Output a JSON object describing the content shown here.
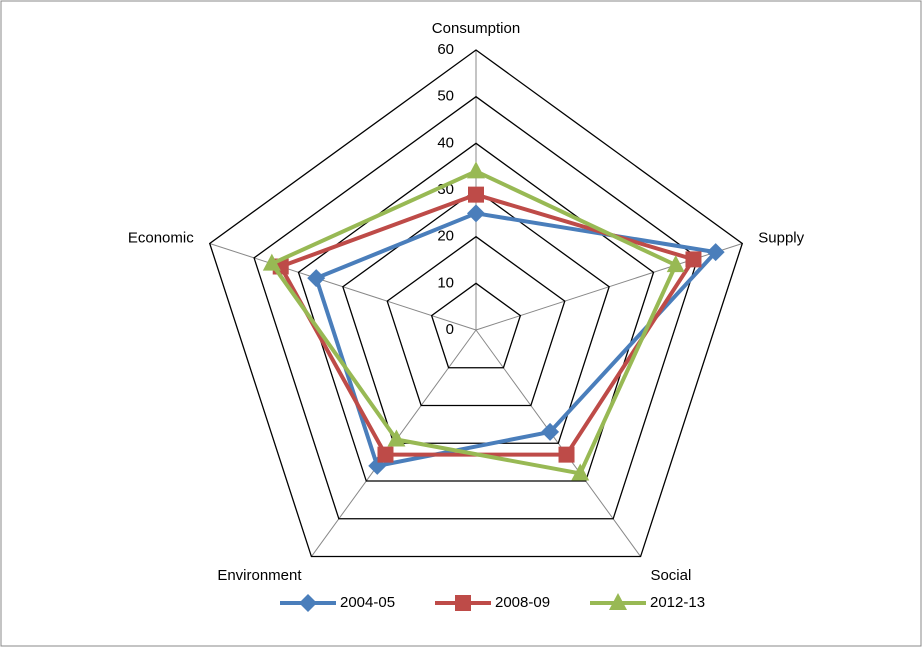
{
  "chart_data": {
    "type": "radar",
    "categories": [
      "Consumption",
      "Supply",
      "Social",
      "Environment",
      "Economic"
    ],
    "series": [
      {
        "name": "2004-05",
        "color": "#4a7ebb",
        "marker": "diamond",
        "values": [
          25,
          54,
          27,
          36,
          36
        ]
      },
      {
        "name": "2008-09",
        "color": "#be4b48",
        "marker": "square",
        "values": [
          29,
          49,
          33,
          33,
          44
        ]
      },
      {
        "name": "2012-13",
        "color": "#98b954",
        "marker": "triangle",
        "values": [
          34,
          45,
          38,
          29,
          46
        ]
      }
    ],
    "rlim": [
      0,
      60
    ],
    "rticks": [
      0,
      10,
      20,
      30,
      40,
      50,
      60
    ],
    "grid": true,
    "legend": "bottom"
  }
}
